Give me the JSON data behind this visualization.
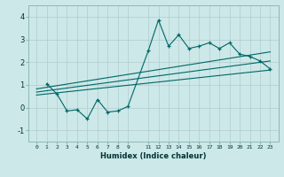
{
  "xlabel": "Humidex (Indice chaleur)",
  "ylabel": "",
  "xlim": [
    -0.8,
    23.8
  ],
  "ylim": [
    -1.5,
    4.5
  ],
  "xticks": [
    0,
    1,
    2,
    3,
    4,
    5,
    6,
    7,
    8,
    9,
    11,
    12,
    13,
    14,
    15,
    16,
    17,
    18,
    19,
    20,
    21,
    22,
    23
  ],
  "xticklabels": [
    "0",
    "1",
    "2",
    "3",
    "4",
    "5",
    "6",
    "7",
    "8",
    "9",
    "11",
    "12",
    "13",
    "14",
    "15",
    "16",
    "17",
    "18",
    "19",
    "20",
    "21",
    "22",
    "23"
  ],
  "yticks": [
    -1,
    0,
    1,
    2,
    3,
    4
  ],
  "yticklabels": [
    "-1",
    "0",
    "1",
    "2",
    "3",
    "4"
  ],
  "bg_color": "#cce8e8",
  "grid_color": "#b0cccc",
  "line_color": "#006666",
  "data_x": [
    1,
    2,
    3,
    4,
    5,
    6,
    7,
    8,
    9,
    11,
    12,
    13,
    14,
    15,
    16,
    17,
    18,
    19,
    20,
    21,
    22,
    23
  ],
  "data_y": [
    1.05,
    0.6,
    -0.15,
    -0.1,
    -0.5,
    0.35,
    -0.2,
    -0.15,
    0.05,
    2.5,
    3.85,
    2.7,
    3.2,
    2.6,
    2.7,
    2.85,
    2.6,
    2.85,
    2.35,
    2.25,
    2.05,
    1.7
  ],
  "trend1_x": [
    0,
    23
  ],
  "trend1_y": [
    0.82,
    2.45
  ],
  "trend2_x": [
    0,
    23
  ],
  "trend2_y": [
    0.55,
    1.65
  ],
  "trend3_x": [
    0,
    23
  ],
  "trend3_y": [
    0.68,
    2.05
  ]
}
